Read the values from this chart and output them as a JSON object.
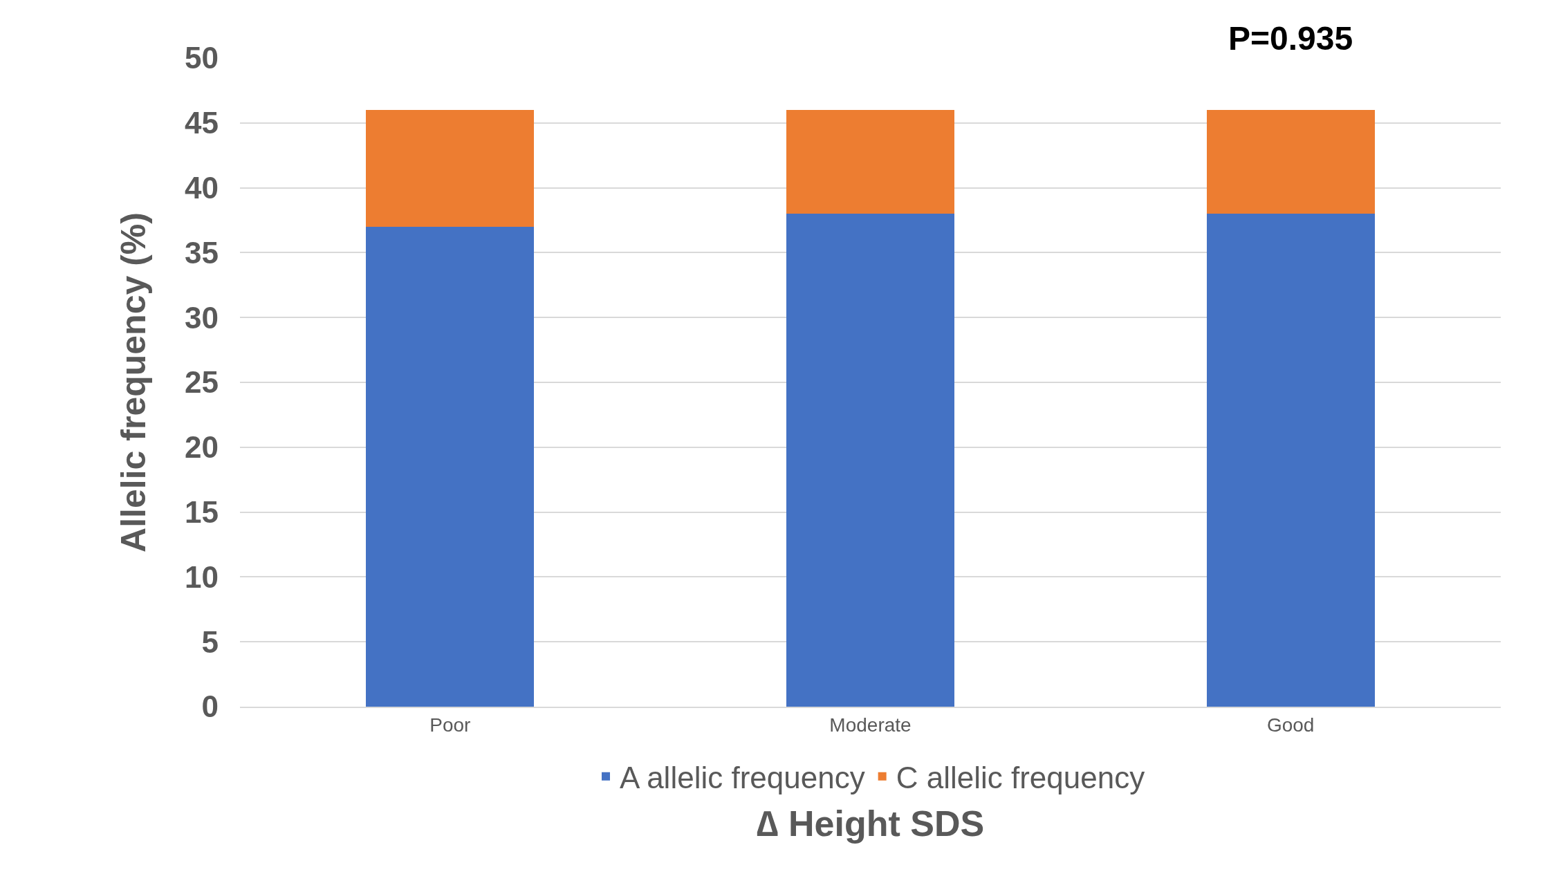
{
  "chart_data": {
    "type": "bar",
    "stacked": true,
    "xlabel": "∆ Height SDS",
    "ylabel": "Allelic frequency (%)",
    "categories": [
      "Poor",
      "Moderate",
      "Good"
    ],
    "series": [
      {
        "name": "A allelic frequency",
        "color": "#4472c4",
        "values": [
          37,
          38,
          38
        ]
      },
      {
        "name": "C allelic frequency",
        "color": "#ed7d31",
        "values": [
          9,
          8,
          8
        ]
      }
    ],
    "ylim": [
      0,
      50
    ],
    "yticks": [
      0,
      5,
      10,
      15,
      20,
      25,
      30,
      35,
      40,
      45,
      50
    ],
    "grid": "y",
    "legend": "bottom",
    "annotations": [
      "P=0.935"
    ]
  }
}
